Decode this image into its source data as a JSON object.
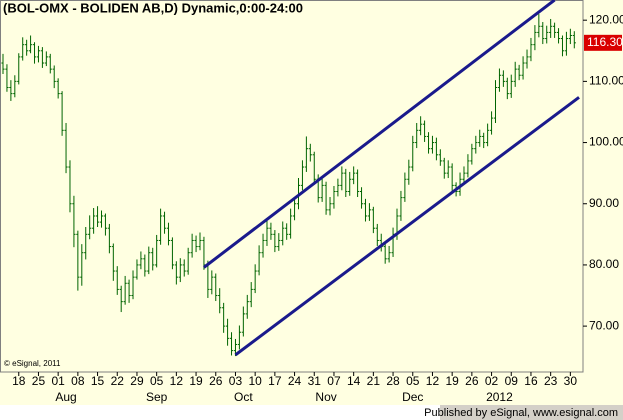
{
  "chart_data": {
    "type": "ohlc",
    "title": "(BOL-OMX - BOLIDEN AB,D) Dynamic,0:00-24:00",
    "copyright": "© eSignal, 2011",
    "footer": "Published by eSignal, www.esignal.com",
    "color": "#006400",
    "trendline_color": "#1a1a8c",
    "grid": false,
    "ylim": [
      62.5,
      123.3
    ],
    "yticks": [
      {
        "value": 70,
        "label": "70.00"
      },
      {
        "value": 80,
        "label": "80.00"
      },
      {
        "value": 90,
        "label": "90.00"
      },
      {
        "value": 100,
        "label": "100.00"
      },
      {
        "value": 110,
        "label": "110.00"
      },
      {
        "value": 120,
        "label": "120.00"
      }
    ],
    "last_price": 116.3,
    "last_price_label": "116.30",
    "categories": [
      null,
      null,
      null,
      null,
      "18",
      null,
      null,
      null,
      null,
      "25",
      null,
      null,
      null,
      null,
      "01",
      null,
      null,
      null,
      null,
      "08",
      null,
      null,
      null,
      null,
      "15",
      null,
      null,
      null,
      null,
      "22",
      null,
      null,
      null,
      null,
      "29",
      null,
      null,
      null,
      null,
      "05",
      null,
      null,
      null,
      null,
      "12",
      null,
      null,
      null,
      null,
      "19",
      null,
      null,
      null,
      null,
      "26",
      null,
      null,
      null,
      null,
      "03",
      null,
      null,
      null,
      null,
      "10",
      null,
      null,
      null,
      null,
      "17",
      null,
      null,
      null,
      null,
      "24",
      null,
      null,
      null,
      null,
      "31",
      null,
      null,
      null,
      null,
      "07",
      null,
      null,
      null,
      null,
      "14",
      null,
      null,
      null,
      null,
      "21",
      null,
      null,
      null,
      null,
      "28",
      null,
      null,
      null,
      null,
      "05",
      null,
      null,
      null,
      null,
      "12",
      null,
      null,
      null,
      null,
      "19",
      null,
      null,
      null,
      null,
      "26",
      null,
      null,
      null,
      null,
      "02",
      null,
      null,
      null,
      null,
      "09",
      null,
      null,
      null,
      null,
      "16",
      null,
      null,
      null,
      null,
      "23",
      null,
      null,
      null,
      null,
      "30",
      null
    ],
    "month_categories": [
      null,
      null,
      null,
      null,
      null,
      null,
      null,
      null,
      null,
      null,
      null,
      null,
      null,
      null,
      null,
      null,
      "Aug",
      null,
      null,
      null,
      null,
      null,
      null,
      null,
      null,
      null,
      null,
      null,
      null,
      null,
      null,
      null,
      null,
      null,
      null,
      null,
      null,
      null,
      null,
      "Sep",
      null,
      null,
      null,
      null,
      null,
      null,
      null,
      null,
      null,
      null,
      null,
      null,
      null,
      null,
      null,
      null,
      null,
      null,
      null,
      null,
      null,
      "Oct",
      null,
      null,
      null,
      null,
      null,
      null,
      null,
      null,
      null,
      null,
      null,
      null,
      null,
      null,
      null,
      null,
      null,
      null,
      null,
      null,
      "Nov",
      null,
      null,
      null,
      null,
      null,
      null,
      null,
      null,
      null,
      null,
      null,
      null,
      null,
      null,
      null,
      null,
      null,
      null,
      null,
      null,
      null,
      "Dec",
      null,
      null,
      null,
      null,
      null,
      null,
      null,
      null,
      null,
      null,
      null,
      null,
      null,
      null,
      null,
      null,
      null,
      null,
      null,
      null,
      null,
      "2012",
      null,
      null,
      null,
      null,
      null,
      null,
      null,
      null,
      null,
      null,
      null,
      null,
      null,
      null,
      null,
      null,
      null,
      null,
      null
    ],
    "ohlc": [
      [
        113,
        114.5,
        111.2,
        112
      ],
      [
        112,
        112.8,
        108.3,
        109
      ],
      [
        109,
        110.2,
        106.8,
        108
      ],
      [
        108,
        111,
        107.4,
        110
      ],
      [
        110,
        114.6,
        109.5,
        114
      ],
      [
        114,
        117.2,
        113.4,
        116
      ],
      [
        116,
        116.8,
        114.2,
        115
      ],
      [
        115,
        117.5,
        114.6,
        116
      ],
      [
        116,
        116.4,
        112.9,
        114
      ],
      [
        114,
        115.8,
        113.1,
        115
      ],
      [
        115,
        115.6,
        112.2,
        113
      ],
      [
        113,
        114.9,
        112.5,
        114
      ],
      [
        114,
        114.5,
        111.3,
        112
      ],
      [
        112,
        112.6,
        108.9,
        110
      ],
      [
        110,
        110.5,
        107.2,
        108
      ],
      [
        108,
        108.4,
        101.1,
        102
      ],
      [
        102,
        103.2,
        95,
        96
      ],
      [
        96,
        97.1,
        88.6,
        90
      ],
      [
        90,
        91.3,
        82.9,
        85
      ],
      [
        85,
        85.6,
        75.8,
        78
      ],
      [
        78,
        83.4,
        76.6,
        82
      ],
      [
        82,
        86.2,
        80.9,
        85
      ],
      [
        85,
        88.1,
        84.2,
        86
      ],
      [
        86,
        89.3,
        85.1,
        88
      ],
      [
        88,
        89.6,
        86.2,
        87
      ],
      [
        87,
        88.9,
        86.1,
        88
      ],
      [
        88,
        88.4,
        84.8,
        86
      ],
      [
        86,
        86.7,
        81.9,
        83
      ],
      [
        83,
        83.5,
        77.4,
        79
      ],
      [
        79,
        79.8,
        75.1,
        76
      ],
      [
        76,
        76.6,
        72.3,
        74
      ],
      [
        74,
        78.2,
        73.5,
        77
      ],
      [
        77,
        77.6,
        73.8,
        75
      ],
      [
        75,
        79.1,
        74.4,
        78
      ],
      [
        78,
        80.9,
        77.6,
        80
      ],
      [
        80,
        82.2,
        79.3,
        81
      ],
      [
        81,
        81.7,
        78.1,
        79
      ],
      [
        79,
        83,
        78.5,
        82
      ],
      [
        82,
        82.8,
        79.1,
        80
      ],
      [
        80,
        84.9,
        79.6,
        84
      ],
      [
        84,
        89.2,
        83.3,
        88
      ],
      [
        88,
        88.7,
        85.1,
        86
      ],
      [
        86,
        86.9,
        83.2,
        84
      ],
      [
        84,
        84.5,
        79.3,
        80
      ],
      [
        80,
        80.6,
        76.8,
        78
      ],
      [
        78,
        81.1,
        77.2,
        80
      ],
      [
        80,
        80.9,
        78.1,
        79
      ],
      [
        79,
        82.8,
        78.4,
        82
      ],
      [
        82,
        85.1,
        81.2,
        84
      ],
      [
        84,
        84.8,
        82.1,
        83
      ],
      [
        83,
        85.3,
        82.4,
        84
      ],
      [
        84,
        84.6,
        79.2,
        80
      ],
      [
        80,
        80.7,
        74.6,
        76
      ],
      [
        76,
        79.1,
        75.2,
        78
      ],
      [
        78,
        78.6,
        74.1,
        75
      ],
      [
        75,
        76.2,
        72.1,
        73
      ],
      [
        73,
        73.8,
        68.9,
        70
      ],
      [
        70,
        71.2,
        66.8,
        68
      ],
      [
        68,
        69,
        65.2,
        66
      ],
      [
        66,
        67.9,
        65.1,
        67
      ],
      [
        67,
        70.1,
        66.2,
        69
      ],
      [
        69,
        73.2,
        68.3,
        72
      ],
      [
        72,
        75.1,
        71.2,
        74
      ],
      [
        74,
        77.2,
        73.1,
        76
      ],
      [
        76,
        80.1,
        75.4,
        79
      ],
      [
        79,
        83.2,
        78.3,
        82
      ],
      [
        82,
        85.1,
        81.2,
        84
      ],
      [
        84,
        87.3,
        83.1,
        86
      ],
      [
        86,
        86.9,
        84.1,
        85
      ],
      [
        85,
        85.7,
        82.1,
        83
      ],
      [
        83,
        85.2,
        82.3,
        84
      ],
      [
        84,
        87.1,
        83.2,
        86
      ],
      [
        86,
        86.8,
        84.1,
        85
      ],
      [
        85,
        89.2,
        84.3,
        88
      ],
      [
        88,
        91.1,
        87.3,
        90
      ],
      [
        90,
        94.2,
        89.1,
        93
      ],
      [
        93,
        97.1,
        92.2,
        96
      ],
      [
        96,
        101,
        95.2,
        99
      ],
      [
        99,
        99.8,
        96.9,
        98
      ],
      [
        98,
        98.5,
        93.1,
        94
      ],
      [
        94,
        94.8,
        90.2,
        91
      ],
      [
        91,
        94.1,
        90.3,
        93
      ],
      [
        93,
        93.6,
        88.2,
        89
      ],
      [
        89,
        91.1,
        88.1,
        90
      ],
      [
        90,
        92.9,
        89.2,
        92
      ],
      [
        92,
        94.1,
        91.2,
        93
      ],
      [
        93,
        96.1,
        92.2,
        95
      ],
      [
        95,
        95.7,
        91.1,
        92
      ],
      [
        92,
        95.2,
        91.3,
        94
      ],
      [
        94,
        96.1,
        93.2,
        95
      ],
      [
        95,
        95.6,
        91.1,
        92
      ],
      [
        92,
        92.7,
        89.2,
        90
      ],
      [
        90,
        90.8,
        87.1,
        88
      ],
      [
        88,
        90.1,
        87.2,
        89
      ],
      [
        89,
        89.5,
        85.2,
        86
      ],
      [
        86,
        86.7,
        83.1,
        84
      ],
      [
        84,
        85.1,
        82.2,
        83
      ],
      [
        83,
        83.6,
        80.2,
        81
      ],
      [
        81,
        83.1,
        80.4,
        82
      ],
      [
        82,
        86.1,
        81.3,
        85
      ],
      [
        85,
        89.2,
        84.1,
        88
      ],
      [
        88,
        92.1,
        87.2,
        91
      ],
      [
        91,
        95.1,
        90.3,
        94
      ],
      [
        94,
        97.2,
        93.1,
        96
      ],
      [
        96,
        101.1,
        95.3,
        100
      ],
      [
        100,
        103.2,
        99.1,
        102
      ],
      [
        102,
        104.3,
        101.2,
        103
      ],
      [
        103,
        103.6,
        100.1,
        101
      ],
      [
        101,
        101.7,
        98.2,
        99
      ],
      [
        99,
        101.1,
        98.2,
        100
      ],
      [
        100,
        100.8,
        97.1,
        98
      ],
      [
        98,
        98.9,
        96.2,
        97
      ],
      [
        97,
        97.5,
        94.1,
        95
      ],
      [
        95,
        97.1,
        94.2,
        96
      ],
      [
        96,
        96.6,
        92.1,
        93
      ],
      [
        93,
        93.5,
        91.2,
        92
      ],
      [
        92,
        95.1,
        91.3,
        94
      ],
      [
        94,
        96.1,
        93.2,
        95
      ],
      [
        95,
        98.1,
        94.3,
        97
      ],
      [
        97,
        99.8,
        96.4,
        99
      ],
      [
        99,
        101.1,
        98.2,
        100
      ],
      [
        100,
        102.1,
        99.3,
        101
      ],
      [
        101,
        101.6,
        99.1,
        100
      ],
      [
        100,
        103.1,
        99.4,
        102
      ],
      [
        102,
        105.1,
        101.3,
        104
      ],
      [
        104,
        110.2,
        103.2,
        109
      ],
      [
        109,
        112.1,
        108.3,
        111
      ],
      [
        111,
        111.8,
        109.1,
        110
      ],
      [
        110,
        110.6,
        107.1,
        108
      ],
      [
        108,
        111.1,
        107.3,
        110
      ],
      [
        110,
        113.2,
        109.1,
        112
      ],
      [
        112,
        112.7,
        110.2,
        111
      ],
      [
        111,
        114.1,
        110.3,
        113
      ],
      [
        113,
        115.2,
        112.1,
        114
      ],
      [
        114,
        117.1,
        113.3,
        116
      ],
      [
        116,
        119.2,
        115.1,
        118
      ],
      [
        118,
        121,
        117.2,
        119
      ],
      [
        119,
        119.7,
        116.1,
        117
      ],
      [
        117,
        119.1,
        116.2,
        118
      ],
      [
        118,
        120.2,
        117.1,
        119
      ],
      [
        119,
        119.6,
        117.1,
        118
      ],
      [
        118,
        118.7,
        116.2,
        117
      ],
      [
        117,
        117.5,
        114.1,
        115
      ],
      [
        115,
        118.1,
        114.2,
        117
      ],
      [
        117,
        118.6,
        116.1,
        117.5
      ],
      [
        117.5,
        118.2,
        115.4,
        116.3
      ]
    ],
    "trendlines": [
      {
        "x": [
          51,
          140
        ],
        "y": [
          79.6,
          123.3
        ]
      },
      {
        "x": [
          59,
          146.2
        ],
        "y": [
          65.3,
          107.4
        ]
      }
    ]
  }
}
